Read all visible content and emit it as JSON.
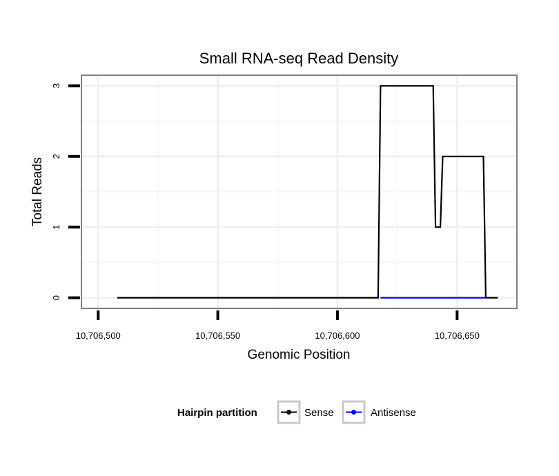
{
  "chart_data": {
    "type": "line",
    "title": "Small RNA-seq Read Density",
    "xlabel": "Genomic Position",
    "ylabel": "Total Reads",
    "xlim": [
      10706493,
      10706675
    ],
    "ylim": [
      -0.15,
      3.15
    ],
    "xticks": [
      10706500,
      10706550,
      10706600,
      10706650
    ],
    "xtick_labels": [
      "10,706,500",
      "10,706,550",
      "10,706,600",
      "10,706,650"
    ],
    "yticks": [
      0,
      1,
      2,
      3
    ],
    "ytick_labels": [
      "0",
      "1",
      "2",
      "3"
    ],
    "grid": true,
    "legend": {
      "title": "Hairpin partition",
      "position": "bottom"
    },
    "series": [
      {
        "name": "Sense",
        "color": "#000000",
        "x": [
          10706508,
          10706617,
          10706618,
          10706640,
          10706641,
          10706643,
          10706644,
          10706661,
          10706662,
          10706667
        ],
        "y": [
          0,
          0,
          3,
          3,
          1,
          1,
          2,
          2,
          0,
          0
        ]
      },
      {
        "name": "Antisense",
        "color": "#0000ff",
        "x": [
          10706618,
          10706662
        ],
        "y": [
          0,
          0
        ]
      }
    ]
  }
}
